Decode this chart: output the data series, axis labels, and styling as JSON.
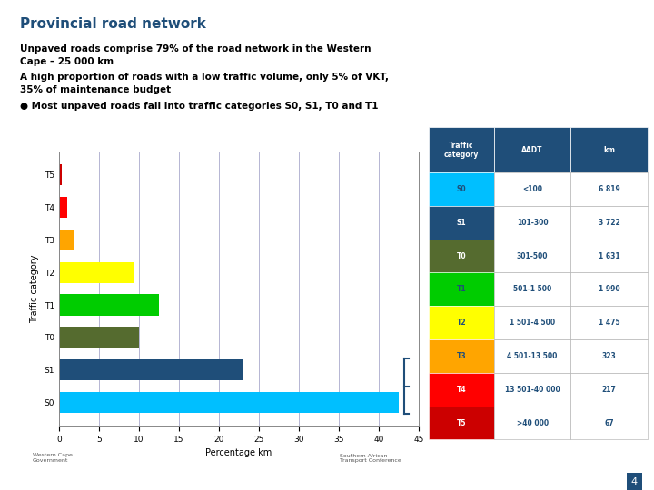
{
  "title": "Provincial road network",
  "subtitle1": "Unpaved roads comprise 79% of the road network in the Western\nCape – 25 000 km",
  "subtitle2": "A high proportion of roads with a low traffic volume, only 5% of VKT,\n35% of maintenance budget",
  "bullet": "Most unpaved roads fall into traffic categories S0, S1, T0 and T1",
  "categories": [
    "S0",
    "S1",
    "T0",
    "T1",
    "T2",
    "T3",
    "T4",
    "T5"
  ],
  "values": [
    42.5,
    23.0,
    10.0,
    12.5,
    9.5,
    2.0,
    1.0,
    0.4
  ],
  "bar_colors": [
    "#00BFFF",
    "#1F4E79",
    "#556B2F",
    "#00CC00",
    "#FFFF00",
    "#FFA500",
    "#FF0000",
    "#CC0000"
  ],
  "xlabel": "Percentage km",
  "ylabel": "Traffic category",
  "xlim": [
    0,
    45
  ],
  "xticks": [
    0,
    5,
    10,
    15,
    20,
    25,
    30,
    35,
    40,
    45
  ],
  "table_header_bg": "#1F4E79",
  "table_header_color": "#FFFFFF",
  "table_rows": [
    {
      "cat": "S0",
      "aadt": "<100",
      "km": "6 819",
      "color": "#00BFFF"
    },
    {
      "cat": "S1",
      "aadt": "101-300",
      "km": "3 722",
      "color": "#1F4E79"
    },
    {
      "cat": "T0",
      "aadt": "301-500",
      "km": "1 631",
      "color": "#556B2F"
    },
    {
      "cat": "T1",
      "aadt": "501-1 500",
      "km": "1 990",
      "color": "#00CC00"
    },
    {
      "cat": "T2",
      "aadt": "1 501-4 500",
      "km": "1 475",
      "color": "#FFFF00"
    },
    {
      "cat": "T3",
      "aadt": "4 501-13 500",
      "km": "323",
      "color": "#FFA500"
    },
    {
      "cat": "T4",
      "aadt": "13 501-40 000",
      "km": "217",
      "color": "#FF0000"
    },
    {
      "cat": "T5",
      "aadt": ">40 000",
      "km": "67",
      "color": "#CC0000"
    }
  ],
  "page_bg": "#FFFFFF",
  "title_color": "#1F4E79",
  "text_color": "#000000",
  "grid_color": "#AAAACC",
  "page_number": "4"
}
